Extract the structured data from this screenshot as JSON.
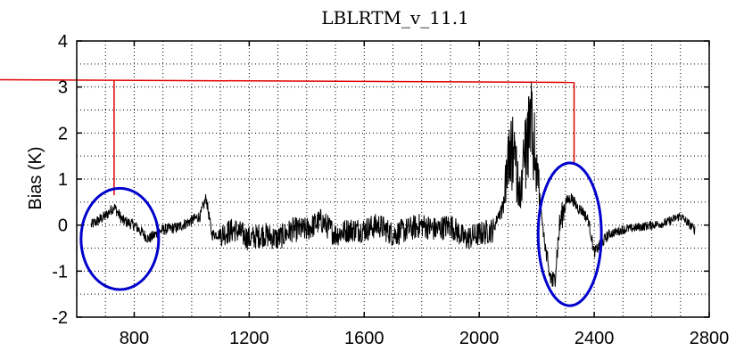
{
  "chart_data": {
    "type": "line",
    "title": "LBLRTM_v_11.1",
    "xlabel": "",
    "ylabel": "Bias (K)",
    "xlim": [
      600,
      2800
    ],
    "ylim": [
      -2,
      4
    ],
    "x_ticks": [
      "800",
      "1200",
      "1600",
      "2000",
      "2400",
      "2800"
    ],
    "y_ticks": [
      "4",
      "3",
      "2",
      "1",
      "0",
      "-1",
      "-2"
    ],
    "grid": true,
    "series": [
      {
        "color": "#000000",
        "x": [
          650,
          700,
          730,
          760,
          800,
          850,
          900,
          950,
          1000,
          1030,
          1050,
          1070,
          1100,
          1150,
          1200,
          1250,
          1300,
          1350,
          1400,
          1450,
          1500,
          1550,
          1600,
          1650,
          1700,
          1750,
          1800,
          1850,
          1900,
          1950,
          2000,
          2050,
          2080,
          2100,
          2120,
          2140,
          2160,
          2180,
          2200,
          2220,
          2240,
          2260,
          2280,
          2300,
          2320,
          2340,
          2360,
          2380,
          2400,
          2450,
          2500,
          2550,
          2600,
          2650,
          2700,
          2750
        ],
        "y": [
          0.0,
          0.2,
          0.4,
          0.1,
          0.0,
          -0.3,
          -0.1,
          -0.05,
          0.1,
          0.2,
          0.6,
          -0.2,
          -0.2,
          -0.1,
          -0.3,
          -0.2,
          -0.3,
          -0.1,
          -0.1,
          0.1,
          -0.2,
          -0.1,
          -0.1,
          0.0,
          -0.2,
          -0.1,
          0.0,
          -0.1,
          0.0,
          -0.3,
          -0.2,
          -0.1,
          0.5,
          2.0,
          2.5,
          1.0,
          2.5,
          3.2,
          2.0,
          0.0,
          -1.0,
          -1.3,
          0.0,
          0.5,
          0.6,
          0.4,
          0.3,
          0.1,
          -0.6,
          -0.2,
          -0.1,
          -0.05,
          0.0,
          0.05,
          0.2,
          -0.1
        ]
      }
    ],
    "annotations": {
      "ellipse_color": "#0000cc",
      "ellipses": [
        {
          "cx": 750,
          "cy": -0.3,
          "rx": 135,
          "ry": 1.1
        },
        {
          "cx": 2315,
          "cy": -0.2,
          "rx": 110,
          "ry": 1.55
        }
      ],
      "line_color": "#e00000",
      "connector_y": 3.1,
      "connector_drops": [
        {
          "x": 730,
          "y_end": 0.65
        },
        {
          "x": 2330,
          "y_end": 1.35
        }
      ]
    }
  }
}
